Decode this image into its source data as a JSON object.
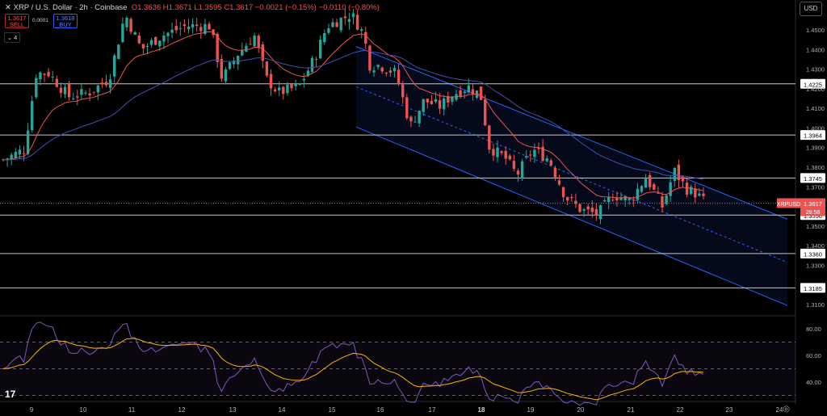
{
  "header": {
    "symbol": "XRP / U.S. Dollar · 2h · Coinbase",
    "ohlc": "O1.3636 H1.3671 L1.3595 C1.3617 −0.0021 (−0.15%) −0.0110 (−0.80%)",
    "sell_price": "1.3617",
    "sell_label": "SELL",
    "buy_price": "1.3618",
    "buy_label": "BUY",
    "spread": "0.0001",
    "collapse": "4",
    "currency": "USD"
  },
  "chart_data": {
    "type": "candlestick",
    "y_range": [
      1.292,
      1.462
    ],
    "x_labels": [
      "9",
      "10",
      "11",
      "12",
      "13",
      "14",
      "15",
      "16",
      "17",
      "18",
      "19",
      "20",
      "21",
      "22",
      "23",
      "24"
    ],
    "price_ticks": [
      "1.4500",
      "1.4400",
      "1.4300",
      "1.4200",
      "1.4100",
      "1.4000",
      "1.3900",
      "1.3800",
      "1.3700",
      "1.3600",
      "1.3500",
      "1.3400",
      "1.3300",
      "1.3100"
    ],
    "levels": [
      {
        "label": "1.4225",
        "value": 1.4225
      },
      {
        "label": "1.3964",
        "value": 1.3964
      },
      {
        "label": "1.3745",
        "value": 1.3745
      },
      {
        "label": "1.3556",
        "value": 1.3556
      },
      {
        "label": "1.3360",
        "value": 1.336
      },
      {
        "label": "1.3185",
        "value": 1.3185
      }
    ],
    "last_price": {
      "symbol": "XRPUSD",
      "value": "1.3617",
      "countdown": "28:58"
    },
    "rsi": {
      "ticks": [
        "80.00",
        "60.00",
        "40.00"
      ],
      "range": [
        20,
        87
      ],
      "upper_band": 70,
      "mid": 50,
      "lower_band": 30
    },
    "colors": {
      "up": "#26a69a",
      "down": "#ef5350",
      "ema_fast": "#ef5350",
      "ema_slow": "#3f51b5",
      "channel": "#2962ff",
      "rsi": "#7e57c2",
      "rsi_ma": "#ffb300"
    }
  }
}
